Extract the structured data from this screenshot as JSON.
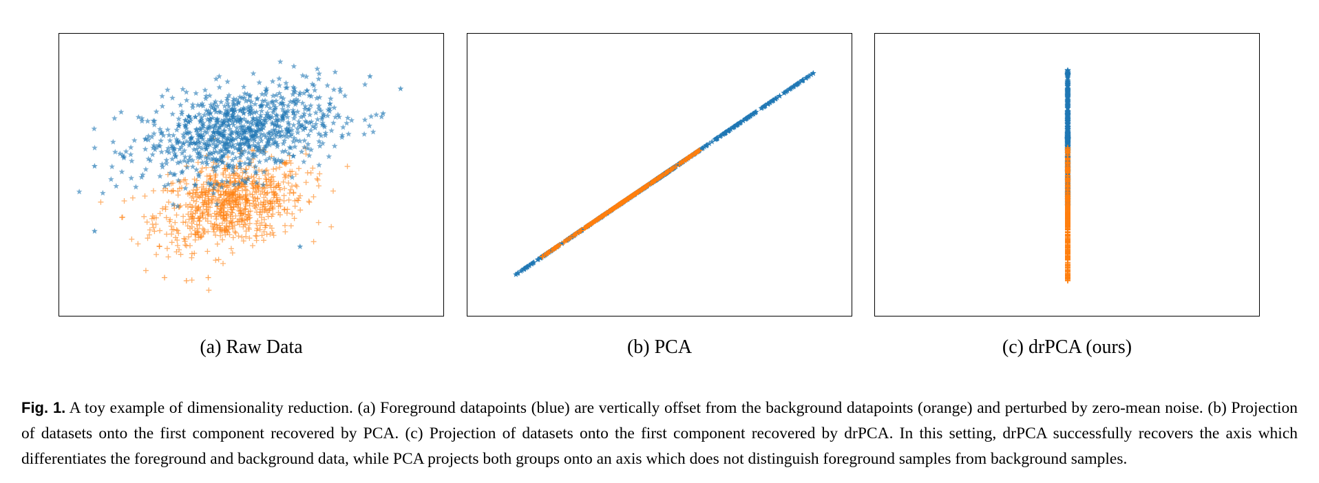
{
  "figure": {
    "panels": [
      {
        "id": "a",
        "subcaption": "(a) Raw Data"
      },
      {
        "id": "b",
        "subcaption": "(b) PCA"
      },
      {
        "id": "c",
        "subcaption": "(c) drPCA (ours)"
      }
    ],
    "caption_label": "Fig. 1.",
    "caption_text": " A toy example of dimensionality reduction. (a) Foreground datapoints (blue) are vertically offset from the background datapoints (orange) and perturbed by zero-mean noise. (b) Projection of datasets onto the first component recovered by PCA. (c) Projection of datasets onto the first component recovered by drPCA. In this setting, drPCA successfully recovers the axis which differentiates the foreground and background data, while PCA projects both groups onto an axis which does not distinguish foreground samples from background samples."
  },
  "colors": {
    "foreground": "#1f77b4",
    "background": "#ff7f0e"
  },
  "chart_data": [
    {
      "type": "scatter",
      "title": "(a) Raw Data",
      "xlim": [
        -4,
        4
      ],
      "ylim": [
        -4,
        4
      ],
      "axes_visible": false,
      "series": [
        {
          "name": "foreground",
          "marker": "star",
          "color": "#1f77b4",
          "center": [
            -0.3,
            1.4
          ],
          "std": [
            1.1,
            0.75
          ],
          "correlation": 0.35,
          "extremes": [
            [
              -3.6,
              0.3
            ],
            [
              -3.6,
              -1.8
            ],
            [
              3.4,
              2.8
            ],
            [
              2.7,
              3.2
            ],
            [
              3.0,
              2.0
            ],
            [
              1.1,
              -2.3
            ]
          ]
        },
        {
          "name": "background",
          "marker": "plus",
          "color": "#ff7f0e",
          "center": [
            -0.5,
            -0.9
          ],
          "std": [
            0.85,
            0.7
          ],
          "correlation": 0.3,
          "extremes": [
            [
              -2.0,
              -3.3
            ],
            [
              -1.5,
              -3.4
            ],
            [
              -1.0,
              -3.3
            ]
          ]
        }
      ]
    },
    {
      "type": "scatter",
      "title": "(b) PCA",
      "xlim": [
        -4,
        4
      ],
      "ylim": [
        -4,
        4
      ],
      "axes_visible": false,
      "projection_line": {
        "from": [
          -3.3,
          -3.2
        ],
        "to": [
          3.5,
          3.3
        ]
      },
      "series": [
        {
          "name": "foreground",
          "marker": "star",
          "color": "#1f77b4",
          "range": [
            -3.3,
            3.5
          ]
        },
        {
          "name": "background",
          "marker": "plus",
          "color": "#ff7f0e",
          "range": [
            -2.7,
            0.9
          ]
        }
      ]
    },
    {
      "type": "scatter",
      "title": "(c) drPCA (ours)",
      "xlim": [
        -4,
        4
      ],
      "ylim": [
        -4,
        4
      ],
      "axes_visible": false,
      "projection_line": {
        "from": [
          0,
          -3.4
        ],
        "to": [
          0,
          3.4
        ]
      },
      "series": [
        {
          "name": "foreground",
          "marker": "star",
          "color": "#1f77b4",
          "range": [
            -1.0,
            3.4
          ]
        },
        {
          "name": "background",
          "marker": "plus",
          "color": "#ff7f0e",
          "range": [
            -3.4,
            0.9
          ]
        }
      ]
    }
  ]
}
